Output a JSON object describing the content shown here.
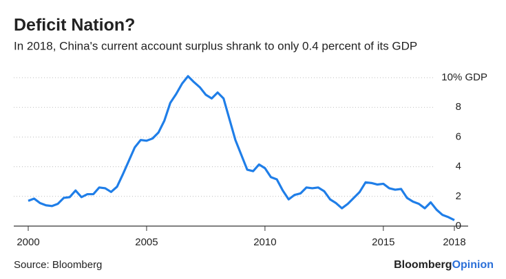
{
  "chart_data": {
    "type": "line",
    "title": "Deficit Nation?",
    "subtitle": "In 2018, China's current account surplus shrank to only 0.4 percent of its GDP",
    "source": "Source: Bloomberg",
    "brand": {
      "name": "Bloomberg",
      "suffix": "Opinion"
    },
    "x": [
      2000.0,
      2000.25,
      2000.5,
      2000.75,
      2001.0,
      2001.25,
      2001.5,
      2001.75,
      2002.0,
      2002.25,
      2002.5,
      2002.75,
      2003.0,
      2003.25,
      2003.5,
      2003.75,
      2004.0,
      2004.25,
      2004.5,
      2004.75,
      2005.0,
      2005.25,
      2005.5,
      2005.75,
      2006.0,
      2006.25,
      2006.5,
      2006.75,
      2007.0,
      2007.25,
      2007.5,
      2007.75,
      2008.0,
      2008.25,
      2008.5,
      2008.75,
      2009.0,
      2009.25,
      2009.5,
      2009.75,
      2010.0,
      2010.25,
      2010.5,
      2010.75,
      2011.0,
      2011.25,
      2011.5,
      2011.75,
      2012.0,
      2012.25,
      2012.5,
      2012.75,
      2013.0,
      2013.25,
      2013.5,
      2013.75,
      2014.0,
      2014.25,
      2014.5,
      2014.75,
      2015.0,
      2015.25,
      2015.5,
      2015.75,
      2016.0,
      2016.25,
      2016.5,
      2016.75,
      2017.0,
      2017.25,
      2017.5,
      2017.75,
      2018.0
    ],
    "series": [
      {
        "name": "Current account surplus",
        "color": "#1f7ee8",
        "values": [
          1.7,
          1.85,
          1.55,
          1.4,
          1.35,
          1.5,
          1.9,
          1.95,
          2.4,
          1.95,
          2.15,
          2.15,
          2.6,
          2.55,
          2.3,
          2.65,
          3.5,
          4.4,
          5.3,
          5.8,
          5.75,
          5.9,
          6.3,
          7.1,
          8.3,
          8.9,
          9.6,
          10.1,
          9.7,
          9.35,
          8.85,
          8.6,
          9.0,
          8.6,
          7.2,
          5.8,
          4.8,
          3.8,
          3.7,
          4.15,
          3.9,
          3.3,
          3.15,
          2.4,
          1.8,
          2.1,
          2.2,
          2.6,
          2.55,
          2.6,
          2.35,
          1.8,
          1.55,
          1.2,
          1.5,
          1.9,
          2.3,
          2.95,
          2.9,
          2.8,
          2.85,
          2.55,
          2.45,
          2.5,
          1.9,
          1.65,
          1.5,
          1.2,
          1.6,
          1.1,
          0.75,
          0.6,
          0.4
        ]
      }
    ],
    "xlim": [
      2000,
      2018
    ],
    "xticks": [
      2000,
      2005,
      2010,
      2015,
      2018
    ],
    "ylim": [
      0,
      10
    ],
    "yticks": [
      0,
      2,
      4,
      6,
      8,
      {
        "value": 10,
        "label": "10% GDP"
      }
    ],
    "grid": true
  }
}
